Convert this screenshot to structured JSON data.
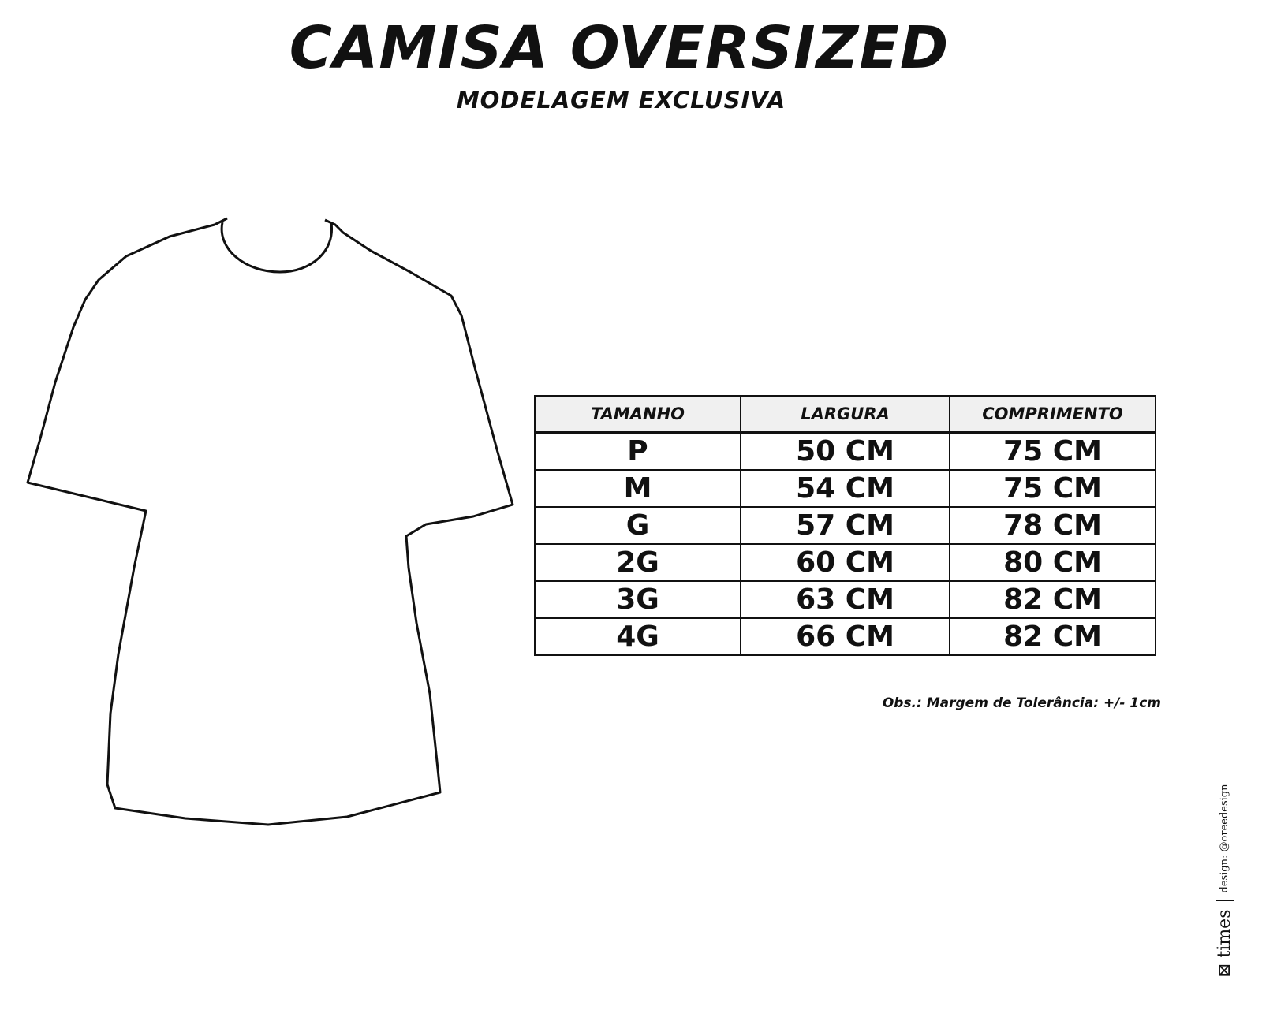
{
  "header": {
    "title": "CAMISA OVERSIZED",
    "subtitle": "MODELAGEM EXCLUSIVA"
  },
  "size_table": {
    "columns": [
      "TAMANHO",
      "LARGURA",
      "COMPRIMENTO"
    ],
    "rows": [
      [
        "P",
        "50 CM",
        "75 CM"
      ],
      [
        "M",
        "54 CM",
        "75 CM"
      ],
      [
        "G",
        "57 CM",
        "78 CM"
      ],
      [
        "2G",
        "60 CM",
        "80 CM"
      ],
      [
        "3G",
        "63 CM",
        "82 CM"
      ],
      [
        "4G",
        "66 CM",
        "82 CM"
      ]
    ]
  },
  "note": "Obs.: Margem de Tolerância: +/- 1cm",
  "footer": {
    "brand": "times",
    "credit": "design: @oreedesign"
  }
}
